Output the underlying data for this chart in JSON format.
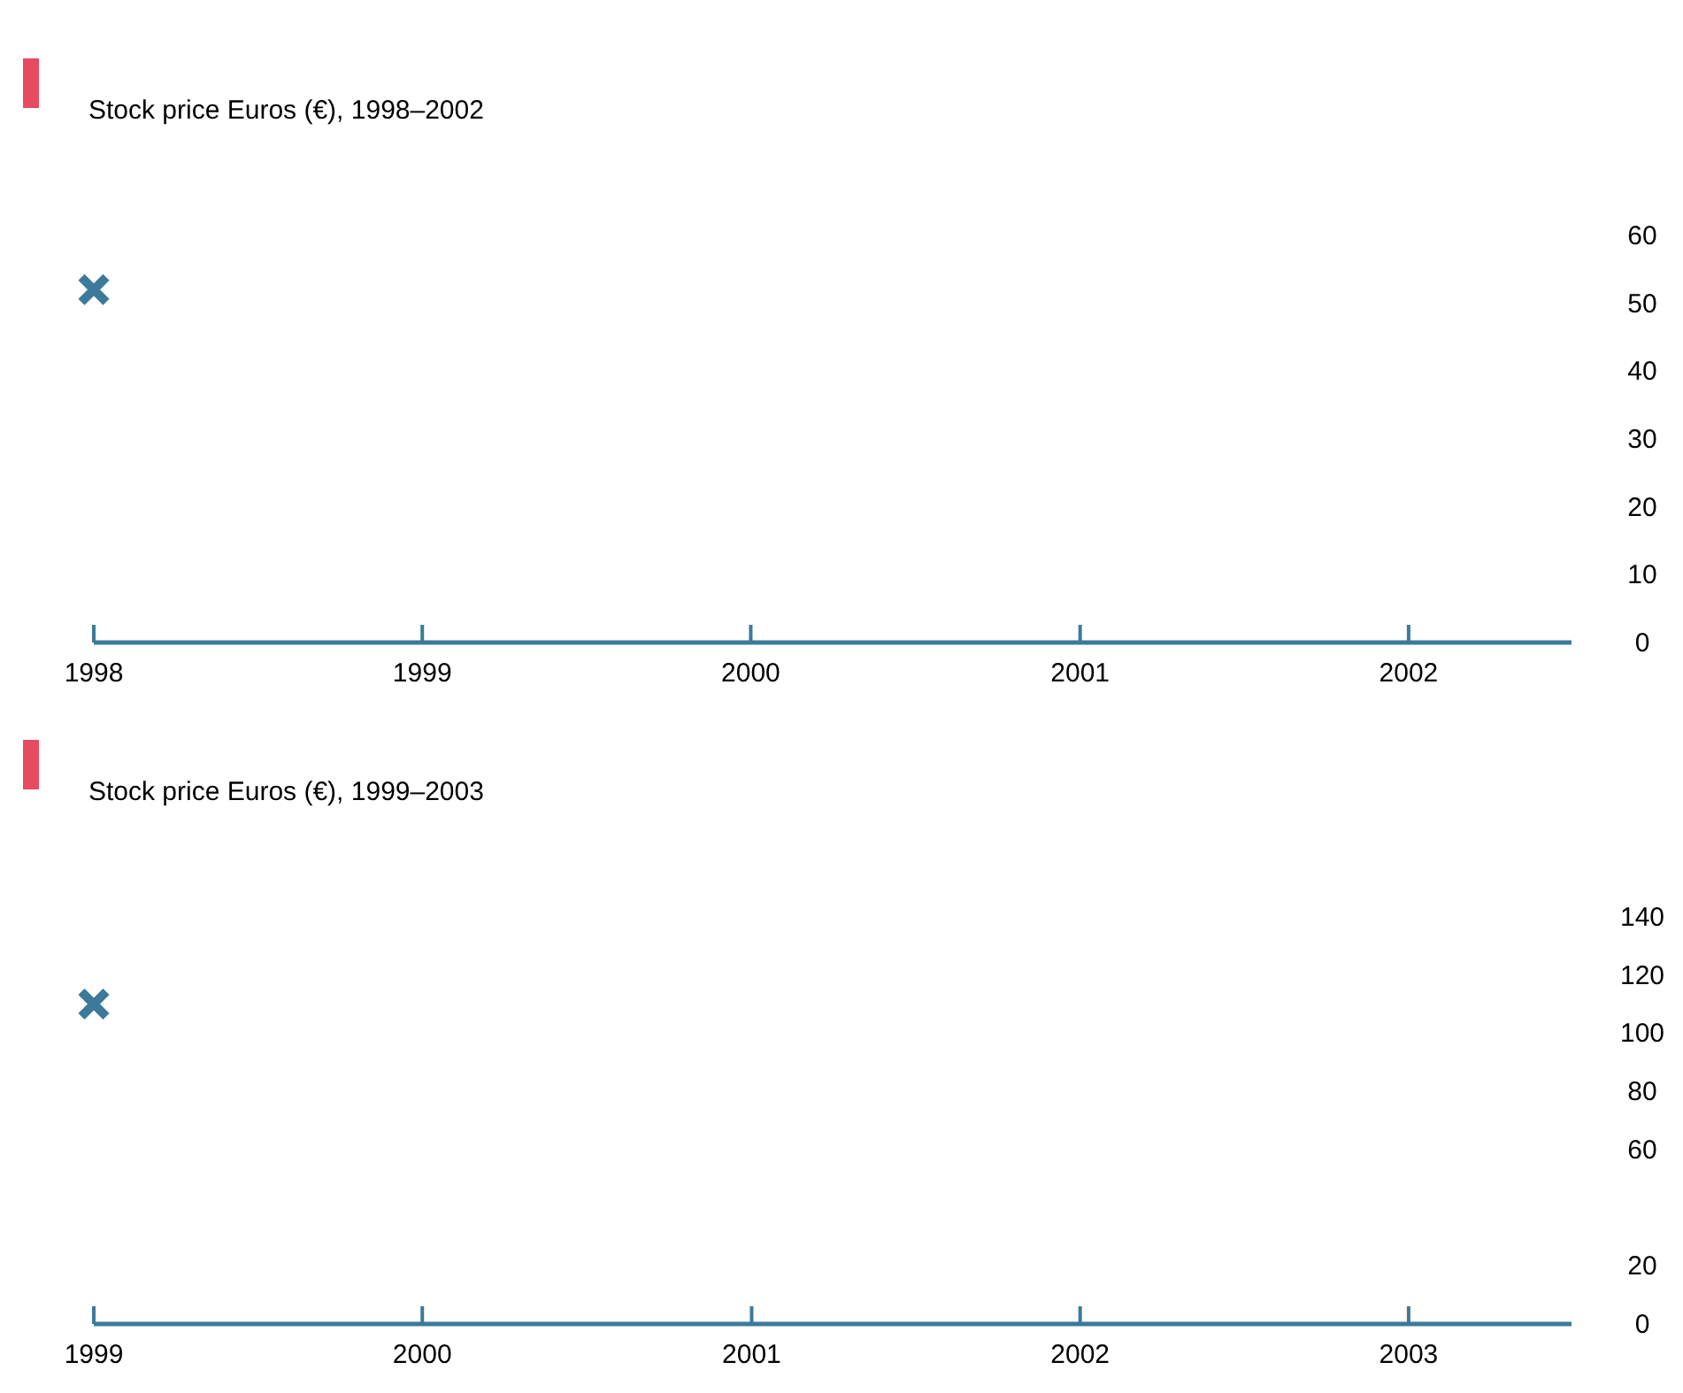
{
  "chart_data": [
    {
      "type": "scatter",
      "subtitle": "Stock price Euros (€), 1998–2002",
      "x": [
        "1998"
      ],
      "series": [
        {
          "color": "#3b7a9a",
          "values": [
            52
          ]
        }
      ],
      "marker": "cross",
      "xlim": [
        "1998",
        "2002-07"
      ],
      "xticks": [
        {
          "value": "1998",
          "label": "1998"
        },
        {
          "value": "1999",
          "label": "1999"
        },
        {
          "value": "2000",
          "label": "2000"
        },
        {
          "value": "2001",
          "label": "2001"
        },
        {
          "value": "2002",
          "label": "2002"
        }
      ],
      "ylim": [
        0,
        60
      ],
      "yticks": [
        0,
        10,
        20,
        30,
        40,
        50,
        60
      ],
      "grid": false
    },
    {
      "type": "scatter",
      "subtitle": "Stock price Euros (€), 1999–2003",
      "x": [
        "1999"
      ],
      "series": [
        {
          "color": "#3b7a9a",
          "values": [
            110
          ]
        }
      ],
      "marker": "cross",
      "xlim": [
        "1999",
        "2003-07"
      ],
      "xticks": [
        {
          "value": "1999",
          "label": "1999"
        },
        {
          "value": "2000",
          "label": "2000"
        },
        {
          "value": "2001",
          "label": "2001"
        },
        {
          "value": "2002",
          "label": "2002"
        },
        {
          "value": "2003",
          "label": "2003"
        }
      ],
      "ylim": [
        0,
        140
      ],
      "yticks": [
        0,
        20,
        60,
        80,
        100,
        120,
        140
      ],
      "grid": false
    }
  ]
}
